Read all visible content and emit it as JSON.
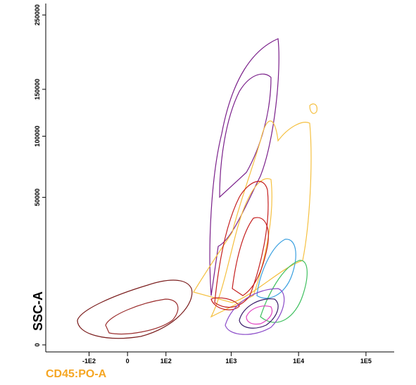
{
  "chart_data": {
    "type": "contour",
    "xlabel": "CD45:PO-A",
    "ylabel": "SSC-A",
    "xscale": "biex",
    "yscale": "sqrt",
    "xlim": [
      -200,
      262144
    ],
    "ylim": [
      0,
      262144
    ],
    "xticks": [
      {
        "value": -100,
        "label": "-1E2"
      },
      0,
      {
        "value": 100,
        "label": "1E2"
      },
      {
        "value": 1000,
        "label": "1E3"
      },
      {
        "value": 10000,
        "label": "1E4"
      },
      {
        "value": 100000,
        "label": "1E5"
      }
    ],
    "yticks": [
      0,
      50000,
      100000,
      150000,
      250000
    ]
  }
}
